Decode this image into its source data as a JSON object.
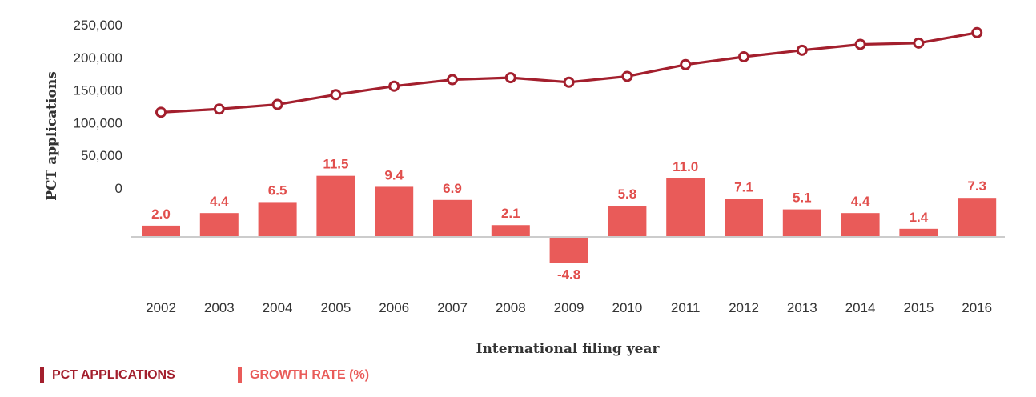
{
  "chart_data": {
    "type": "bar+line",
    "categories": [
      "2002",
      "2003",
      "2004",
      "2005",
      "2006",
      "2007",
      "2008",
      "2009",
      "2010",
      "2011",
      "2012",
      "2013",
      "2014",
      "2015",
      "2016"
    ],
    "series": [
      {
        "name": "PCT APPLICATIONS",
        "type": "line",
        "axis": "left",
        "values": [
          116000,
          121000,
          128000,
          143000,
          156000,
          166000,
          169000,
          162000,
          171000,
          189000,
          201000,
          211000,
          220000,
          222000,
          238000
        ]
      },
      {
        "name": "GROWTH RATE (%)",
        "type": "bar",
        "values": [
          2.0,
          4.4,
          6.5,
          11.5,
          9.4,
          6.9,
          2.1,
          -4.8,
          5.8,
          11.0,
          7.1,
          5.1,
          4.4,
          1.4,
          7.3
        ],
        "labels": [
          "2.0",
          "4.4",
          "6.5",
          "11.5",
          "9.4",
          "6.9",
          "2.1",
          "-4.8",
          "5.8",
          "11.0",
          "7.1",
          "5.1",
          "4.4",
          "1.4",
          "7.3"
        ]
      }
    ],
    "ylabel": "PCT applications",
    "xlabel": "International filing year",
    "yticks": [
      "0",
      "50,000",
      "100,000",
      "150,000",
      "200,000",
      "250,000"
    ],
    "ylim": [
      0,
      250000
    ],
    "legend_position": "bottom-left",
    "colors": {
      "line": "#a31f2d",
      "bar": "#e95b59",
      "bar_label": "#e14e4c",
      "axis": "#cccccc"
    }
  },
  "legend": {
    "items": [
      {
        "label": "PCT APPLICATIONS",
        "color": "#a31f2d"
      },
      {
        "label": "GROWTH RATE (%)",
        "color": "#e95b59"
      }
    ]
  }
}
